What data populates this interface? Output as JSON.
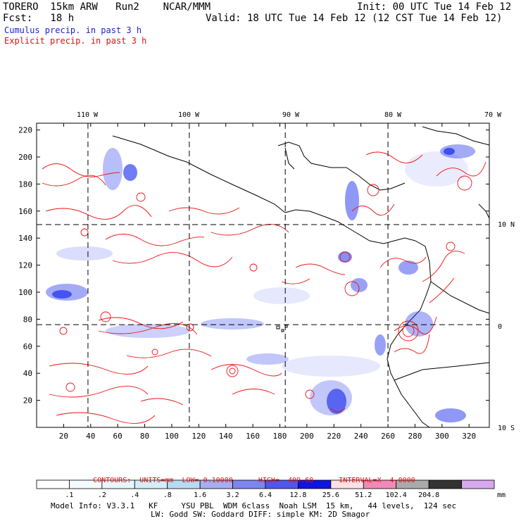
{
  "header": {
    "model": "TORERO  15km ARW   Run2    NCAR/MMM",
    "init": "Init: 00 UTC Tue 14 Feb 12",
    "fcst": "Fcst:   18 h",
    "valid": "Valid: 18 UTC Tue 14 Feb 12 (12 CST Tue 14 Feb 12)",
    "cumulus": "Cumulus precip. in past 3 h",
    "explicit": "Explicit precip. in past 3 h"
  },
  "map": {
    "lon_labels": [
      "110 W",
      "100 W",
      "90 W",
      "80 W",
      "70 W"
    ],
    "lat_labels": [
      "10 N",
      "0",
      "10 S"
    ],
    "land_color": "#ffffff",
    "cumulus_color": "#3344ee",
    "explicit_color": "#ee1111"
  },
  "chart_data": {
    "type": "heatmap",
    "xlim": [
      0,
      335
    ],
    "ylim": [
      0,
      225
    ],
    "x_ticks": [
      20,
      40,
      60,
      80,
      100,
      120,
      140,
      160,
      180,
      200,
      220,
      240,
      260,
      280,
      300,
      320
    ],
    "y_ticks": [
      20,
      40,
      60,
      80,
      100,
      120,
      140,
      160,
      180,
      200,
      220
    ],
    "gridlines_x": [
      38,
      113,
      184,
      260
    ],
    "gridlines_y": [
      76,
      150
    ],
    "legend_levels": [
      "",
      ".1",
      ".2",
      ".4",
      ".8",
      "1.6",
      "3.2",
      "6.4",
      "12.8",
      "25.6",
      "51.2",
      "102.4",
      "204.8",
      "mm"
    ],
    "legend_colors": [
      "#ffffff",
      "#f4fbff",
      "#e6f6fc",
      "#d3eef8",
      "#b7dcf2",
      "#a6aef0",
      "#7d86ee",
      "#4e58ea",
      "#1014e0",
      "#fde0e4",
      "#f08ab8",
      "#aaaaaa",
      "#333333",
      "#d8a8f0"
    ],
    "contours": {
      "label": "CONTOURS:",
      "units": "UNITS=mm",
      "low": "LOW= 0.10000",
      "high": "HIGH=  409.60",
      "interval": "INTERVAL=X  4.0000"
    }
  },
  "model_info": {
    "line1": "Model Info: V3.3.1   KF     YSU PBL  WDM 6class  Noah LSM  15 km,   44 levels,  124 sec",
    "line2": "LW: Godd SW: Goddard DIFF: simple KM: 2D Smagor"
  }
}
